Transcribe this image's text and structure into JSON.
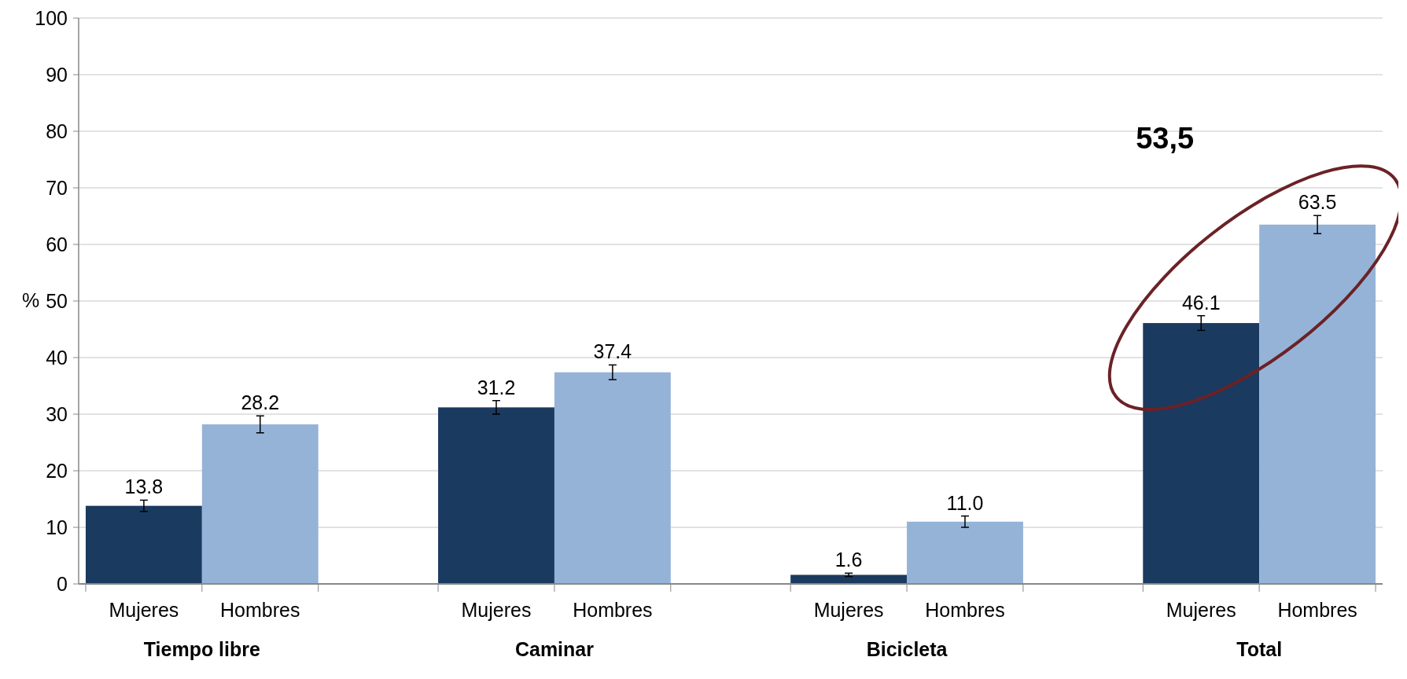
{
  "chart_data": {
    "type": "bar",
    "ylabel": "%",
    "categories": [
      "Tiempo libre",
      "Caminar",
      "Bicicleta",
      "Total"
    ],
    "series": [
      {
        "name": "Mujeres",
        "color": "#1b3a5f",
        "values": [
          13.8,
          31.2,
          1.6,
          46.1
        ],
        "value_labels": [
          "13.8",
          "31.2",
          "1.6",
          "46.1"
        ],
        "errors": [
          1,
          1.2,
          0.3,
          1.3
        ]
      },
      {
        "name": "Hombres",
        "color": "#95b3d7",
        "values": [
          28.2,
          37.4,
          11.0,
          63.5
        ],
        "value_labels": [
          "28.2",
          "37.4",
          "11.0",
          "63.5"
        ],
        "errors": [
          1.5,
          1.3,
          1,
          1.6
        ]
      }
    ],
    "ylim": [
      0,
      100
    ],
    "yticks": [
      0,
      10,
      20,
      30,
      40,
      50,
      60,
      70,
      80,
      90,
      100
    ],
    "grid": "y",
    "annotations": [
      "53,5"
    ]
  }
}
